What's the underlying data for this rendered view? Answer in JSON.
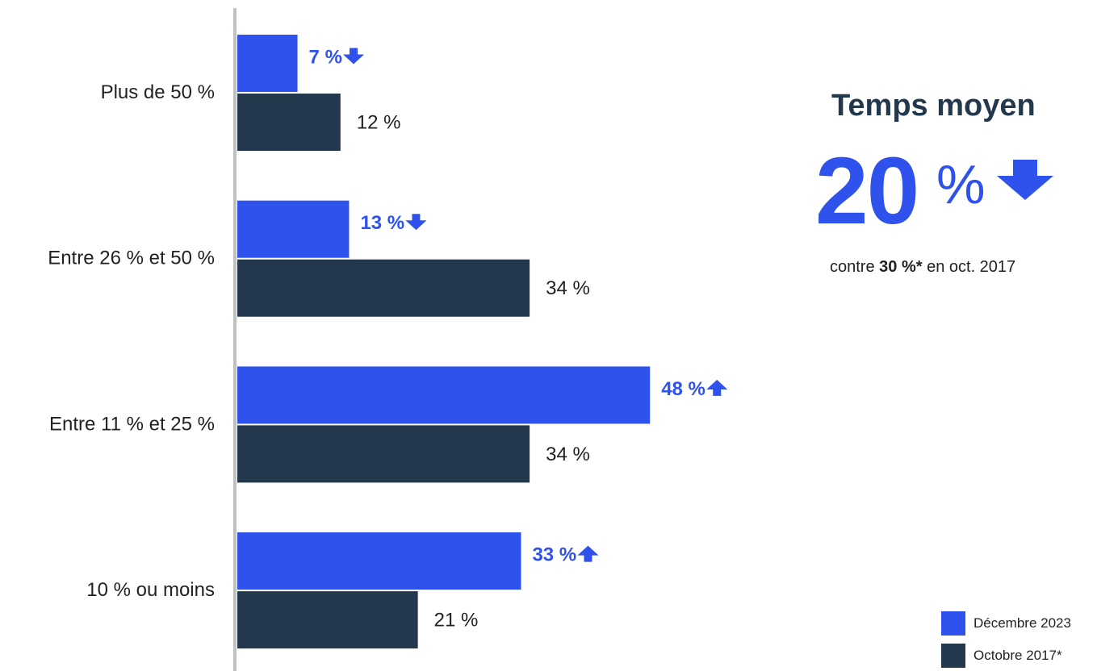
{
  "chart_data": {
    "type": "bar",
    "orientation": "horizontal",
    "categories": [
      "Plus de 50 %",
      "Entre 26 % et 50 %",
      "Entre 11 % et 25 %",
      "10 % ou moins"
    ],
    "unit": "%",
    "series": [
      {
        "name": "Décembre 2023",
        "color": "#2f52ec",
        "values": [
          7,
          13,
          48,
          33
        ],
        "labels": [
          "7 %",
          "13 %",
          "48 %",
          "33 %"
        ],
        "trend": [
          "down",
          "down",
          "up",
          "up"
        ]
      },
      {
        "name": "Octobre 2017*",
        "color": "#23384d",
        "values": [
          12,
          34,
          34,
          21
        ],
        "labels": [
          "12 %",
          "34 %",
          "34 %",
          "21 %"
        ]
      }
    ],
    "xlim": [
      0,
      50
    ],
    "grid": false,
    "legend_position": "bottom-right"
  },
  "summary": {
    "title": "Temps moyen",
    "value": "20",
    "unit": "%",
    "trend": "down",
    "compare_prefix": "contre ",
    "compare_value": "30 %*",
    "compare_suffix": " en oct. 2017"
  },
  "colors": {
    "accent": "#2f52ec",
    "dark": "#23384d",
    "axis": "#c0c0c0"
  },
  "icons": {
    "down": "arrow-down-icon",
    "up": "arrow-up-icon"
  }
}
